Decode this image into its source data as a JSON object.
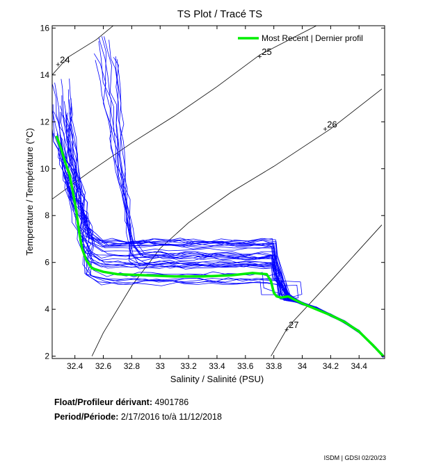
{
  "chart_data": {
    "type": "line",
    "title": "TS Plot / Tracé TS",
    "xlabel": "Salinity / Salinité (PSU)",
    "ylabel": "Temperature / Température (°C)",
    "xlim": [
      32.24,
      34.58
    ],
    "ylim": [
      1.9,
      16.1
    ],
    "x_ticks": [
      "32.4",
      "32.6",
      "32.8",
      "33",
      "33.2",
      "33.4",
      "33.6",
      "33.8",
      "34",
      "34.2",
      "34.4"
    ],
    "y_ticks": [
      "2",
      "4",
      "6",
      "8",
      "10",
      "12",
      "14",
      "16"
    ],
    "grid": false,
    "legend_position": "top-right",
    "density_contours": [
      {
        "label": "24",
        "points": [
          [
            32.24,
            14.0
          ],
          [
            32.35,
            14.75
          ],
          [
            32.55,
            15.5
          ],
          [
            32.67,
            16.1
          ]
        ]
      },
      {
        "label": "25",
        "points": [
          [
            32.24,
            8.7
          ],
          [
            32.5,
            9.85
          ],
          [
            32.8,
            11.1
          ],
          [
            33.1,
            12.25
          ],
          [
            33.4,
            13.5
          ],
          [
            33.7,
            14.85
          ],
          [
            34.1,
            16.1
          ]
        ]
      },
      {
        "label": "26",
        "points": [
          [
            32.52,
            2.0
          ],
          [
            32.6,
            3.0
          ],
          [
            32.8,
            5.0
          ],
          [
            33.0,
            6.6
          ],
          [
            33.2,
            7.7
          ],
          [
            33.5,
            9.0
          ],
          [
            33.8,
            10.1
          ],
          [
            34.2,
            11.7
          ],
          [
            34.56,
            13.4
          ]
        ]
      },
      {
        "label": "27",
        "points": [
          [
            33.78,
            2.0
          ],
          [
            33.9,
            3.25
          ],
          [
            34.2,
            5.2
          ],
          [
            34.56,
            7.6
          ]
        ]
      }
    ],
    "series": [
      {
        "name": "Most Recent | Dernier profil",
        "color": "#00ee00",
        "x": [
          32.27,
          32.3,
          32.33,
          32.36,
          32.38,
          32.41,
          32.43,
          32.45,
          32.48,
          32.52,
          32.6,
          32.7,
          32.9,
          33.1,
          33.3,
          33.5,
          33.65,
          33.75,
          33.78,
          33.8,
          33.82,
          33.85,
          33.9,
          33.95,
          34.0,
          34.1,
          34.2,
          34.3,
          34.4,
          34.5,
          34.57
        ],
        "y": [
          11.4,
          10.9,
          10.3,
          9.8,
          9.2,
          8.2,
          7.3,
          6.6,
          6.1,
          5.75,
          5.6,
          5.5,
          5.45,
          5.4,
          5.4,
          5.45,
          5.55,
          5.5,
          5.2,
          4.7,
          4.55,
          4.5,
          4.55,
          4.4,
          4.25,
          4.0,
          3.75,
          3.45,
          3.05,
          2.45,
          2.0
        ]
      }
    ],
    "history_color": "#0000ff",
    "history_profiles_drawn": 40
  },
  "info": {
    "float_label": "Float/Profileur dérivant:",
    "float_value": "4901786",
    "period_label": "Period/Période:",
    "period_value": "2/17/2016  to/à  11/12/2018"
  },
  "footer": "ISDM | GDSI  02/20/23"
}
